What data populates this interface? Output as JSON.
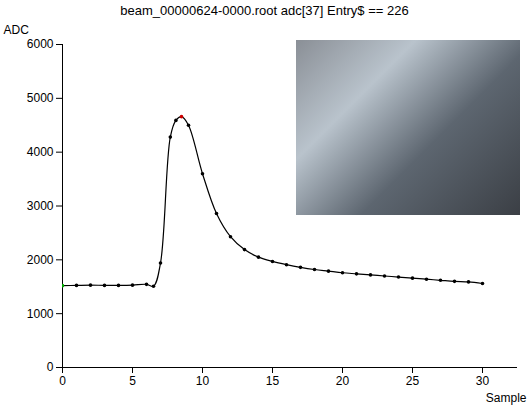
{
  "chart_data": {
    "type": "line",
    "title": "beam_00000624-0000.root adc[37] Entry$ == 226",
    "x_label": "Sample",
    "y_label": "ADC",
    "x": [
      0,
      1,
      2,
      3,
      4,
      5,
      6,
      6.5,
      7,
      7.7,
      8.1,
      8.5,
      9,
      10,
      11,
      12,
      13,
      14,
      15,
      16,
      17,
      18,
      19,
      20,
      21,
      22,
      23,
      24,
      25,
      26,
      27,
      28,
      29,
      30
    ],
    "values": [
      1520,
      1525,
      1530,
      1525,
      1525,
      1530,
      1545,
      1510,
      1940,
      4280,
      4590,
      4660,
      4500,
      3600,
      2860,
      2430,
      2190,
      2050,
      1970,
      1910,
      1860,
      1820,
      1790,
      1760,
      1740,
      1720,
      1700,
      1680,
      1660,
      1640,
      1620,
      1600,
      1590,
      1560
    ],
    "colors": [
      "#00aa00",
      "#000000",
      "#000000",
      "#000000",
      "#000000",
      "#000000",
      "#000000",
      "#000000",
      "#000000",
      "#000000",
      "#000000",
      "#cc0000",
      "#000000",
      "#000000",
      "#000000",
      "#000000",
      "#000000",
      "#000000",
      "#000000",
      "#000000",
      "#000000",
      "#000000",
      "#000000",
      "#000000",
      "#000000",
      "#000000",
      "#000000",
      "#000000",
      "#000000",
      "#000000",
      "#000000",
      "#000000",
      "#000000",
      "#000000"
    ],
    "color": "#000000",
    "marker": "dot",
    "line_style": "solid",
    "xlim": [
      0,
      32.5
    ],
    "xticks": [
      0,
      5,
      10,
      15,
      20,
      25,
      30
    ],
    "ylim": [
      0,
      6000
    ],
    "yticks": [
      0,
      1000,
      2000,
      3000,
      4000,
      5000,
      6000
    ],
    "grid": false
  }
}
